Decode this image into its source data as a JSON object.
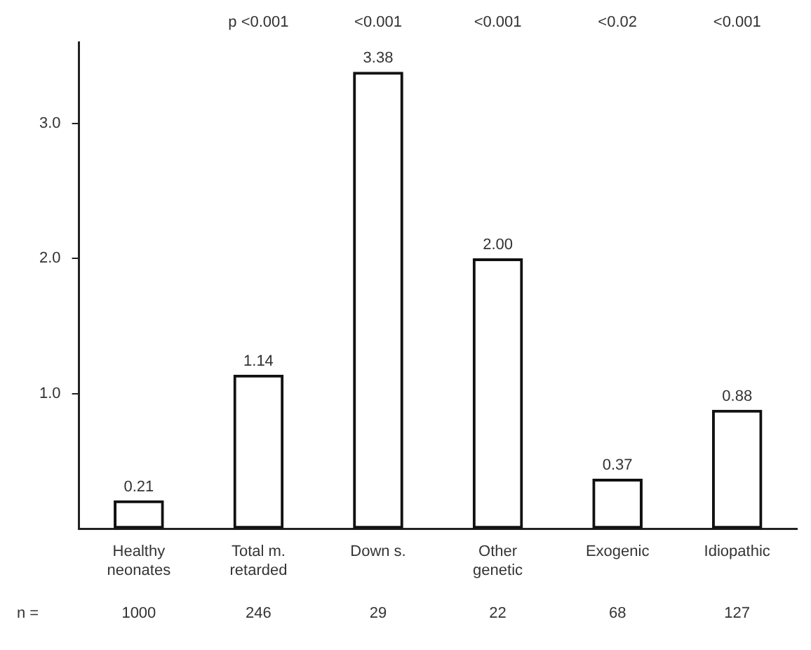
{
  "chart_data": {
    "type": "bar",
    "categories": [
      "Healthy\nneonates",
      "Total m.\nretarded",
      "Down s.",
      "Other\ngenetic",
      "Exogenic",
      "Idiopathic"
    ],
    "values": [
      0.21,
      1.14,
      3.38,
      2.0,
      0.37,
      0.88
    ],
    "value_labels": [
      "0.21",
      "1.14",
      "3.38",
      "2.00",
      "0.37",
      "0.88"
    ],
    "color": "#111111",
    "ylim": [
      0,
      3.6
    ],
    "yticks": [
      {
        "value": 1,
        "label": "1.0"
      },
      {
        "value": 2,
        "label": "2.0"
      },
      {
        "value": 3,
        "label": "3.0"
      }
    ],
    "grid": false,
    "legend": false,
    "annotations": [
      "p <0.001",
      "<0.001",
      "<0.001",
      "<0.02",
      "<0.001",
      "n =",
      "1000",
      "246",
      "29",
      "22",
      "68",
      "127"
    ]
  }
}
